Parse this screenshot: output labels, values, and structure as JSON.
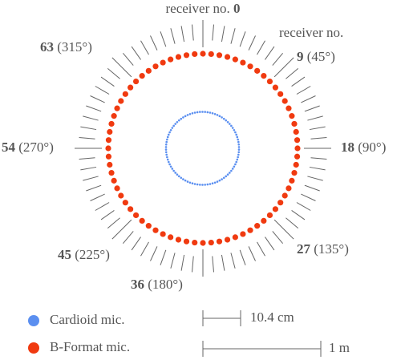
{
  "top_label": {
    "text": "receiver no.",
    "number": "0"
  },
  "side_label": "receiver no.",
  "receiver_labels": [
    {
      "number": "9",
      "angle": "(45°)"
    },
    {
      "number": "18",
      "angle": "(90°)"
    },
    {
      "number": "27",
      "angle": "(135°)"
    },
    {
      "number": "36",
      "angle": "(180°)"
    },
    {
      "number": "45",
      "angle": "(225°)"
    },
    {
      "number": "54",
      "angle": "(270°)"
    },
    {
      "number": "63",
      "angle": "(315°)"
    }
  ],
  "legend": [
    {
      "label": "Cardioid mic.",
      "color": "#5b8ff0"
    },
    {
      "label": "B-Format mic.",
      "color": "#f03a10"
    }
  ],
  "scale_bars": [
    "10.4 cm",
    "1 m"
  ]
}
